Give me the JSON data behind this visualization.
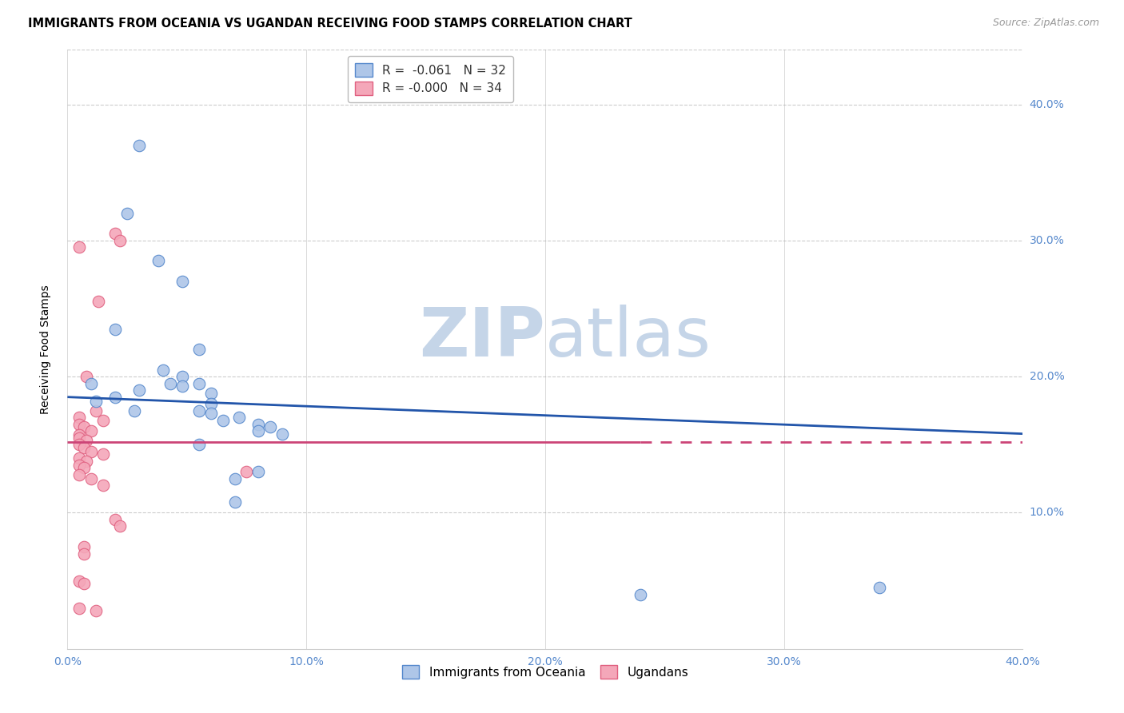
{
  "title": "IMMIGRANTS FROM OCEANIA VS UGANDAN RECEIVING FOOD STAMPS CORRELATION CHART",
  "source": "Source: ZipAtlas.com",
  "ylabel": "Receiving Food Stamps",
  "ytick_labels": [
    "10.0%",
    "20.0%",
    "30.0%",
    "40.0%"
  ],
  "ytick_values": [
    0.1,
    0.2,
    0.3,
    0.4
  ],
  "xtick_labels": [
    "0.0%",
    "10.0%",
    "20.0%",
    "30.0%",
    "40.0%"
  ],
  "xtick_values": [
    0.0,
    0.1,
    0.2,
    0.3,
    0.4
  ],
  "xlim": [
    0.0,
    0.4
  ],
  "ylim": [
    0.0,
    0.44
  ],
  "legend_blue_r": "R =  -0.061",
  "legend_blue_n": "N = 32",
  "legend_pink_r": "R = -0.000",
  "legend_pink_n": "N = 34",
  "blue_scatter": [
    [
      0.03,
      0.37
    ],
    [
      0.025,
      0.32
    ],
    [
      0.038,
      0.285
    ],
    [
      0.048,
      0.27
    ],
    [
      0.02,
      0.235
    ],
    [
      0.055,
      0.22
    ],
    [
      0.01,
      0.195
    ],
    [
      0.04,
      0.205
    ],
    [
      0.048,
      0.2
    ],
    [
      0.03,
      0.19
    ],
    [
      0.043,
      0.195
    ],
    [
      0.048,
      0.193
    ],
    [
      0.055,
      0.195
    ],
    [
      0.06,
      0.188
    ],
    [
      0.02,
      0.185
    ],
    [
      0.012,
      0.182
    ],
    [
      0.06,
      0.18
    ],
    [
      0.028,
      0.175
    ],
    [
      0.055,
      0.175
    ],
    [
      0.06,
      0.173
    ],
    [
      0.072,
      0.17
    ],
    [
      0.065,
      0.168
    ],
    [
      0.08,
      0.165
    ],
    [
      0.085,
      0.163
    ],
    [
      0.08,
      0.16
    ],
    [
      0.09,
      0.158
    ],
    [
      0.055,
      0.15
    ],
    [
      0.08,
      0.13
    ],
    [
      0.24,
      0.04
    ],
    [
      0.34,
      0.045
    ],
    [
      0.07,
      0.108
    ],
    [
      0.07,
      0.125
    ]
  ],
  "pink_scatter": [
    [
      0.005,
      0.295
    ],
    [
      0.02,
      0.305
    ],
    [
      0.022,
      0.3
    ],
    [
      0.013,
      0.255
    ],
    [
      0.008,
      0.2
    ],
    [
      0.012,
      0.175
    ],
    [
      0.005,
      0.17
    ],
    [
      0.015,
      0.168
    ],
    [
      0.005,
      0.165
    ],
    [
      0.007,
      0.163
    ],
    [
      0.01,
      0.16
    ],
    [
      0.005,
      0.157
    ],
    [
      0.005,
      0.155
    ],
    [
      0.008,
      0.153
    ],
    [
      0.005,
      0.15
    ],
    [
      0.007,
      0.148
    ],
    [
      0.01,
      0.145
    ],
    [
      0.015,
      0.143
    ],
    [
      0.005,
      0.14
    ],
    [
      0.008,
      0.138
    ],
    [
      0.005,
      0.135
    ],
    [
      0.007,
      0.133
    ],
    [
      0.075,
      0.13
    ],
    [
      0.005,
      0.128
    ],
    [
      0.01,
      0.125
    ],
    [
      0.015,
      0.12
    ],
    [
      0.02,
      0.095
    ],
    [
      0.022,
      0.09
    ],
    [
      0.007,
      0.075
    ],
    [
      0.007,
      0.07
    ],
    [
      0.005,
      0.05
    ],
    [
      0.007,
      0.048
    ],
    [
      0.005,
      0.03
    ],
    [
      0.012,
      0.028
    ]
  ],
  "blue_line_x": [
    0.0,
    0.4
  ],
  "blue_line_y": [
    0.185,
    0.158
  ],
  "pink_line_x": [
    0.0,
    0.4
  ],
  "pink_line_y": [
    0.152,
    0.152
  ],
  "pink_line_solid_end": 0.24,
  "scatter_size": 110,
  "blue_fill_color": "#aec6e8",
  "pink_fill_color": "#f4a7b9",
  "blue_edge_color": "#5588cc",
  "pink_edge_color": "#e06080",
  "blue_line_color": "#2255aa",
  "pink_line_color": "#cc4477",
  "title_fontsize": 10.5,
  "axis_label_fontsize": 10,
  "tick_fontsize": 10,
  "legend_fontsize": 11,
  "watermark_zip_color": "#c5d5e8",
  "watermark_atlas_color": "#c5d5e8",
  "background_color": "#ffffff",
  "grid_color": "#cccccc"
}
